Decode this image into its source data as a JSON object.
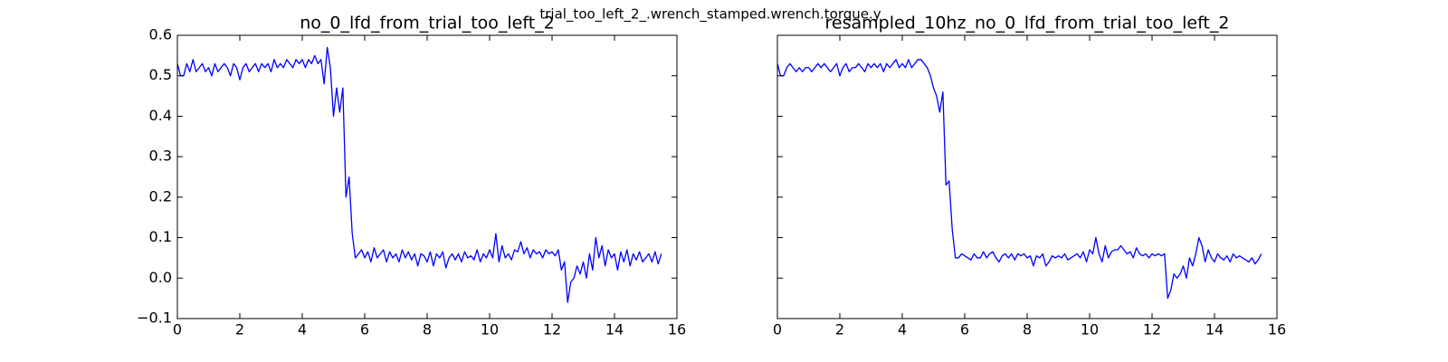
{
  "title": "trial_too_left_2_.wrench_stamped.wrench.torque.y",
  "chart_data": [
    {
      "type": "line",
      "title": "no_0_lfd_from_trial_too_left_2",
      "xlim": [
        0,
        16
      ],
      "xticks": [
        0,
        2,
        4,
        6,
        8,
        10,
        12,
        14,
        16
      ],
      "ylim": [
        -0.1,
        0.6
      ],
      "yticks": [
        {
          "value": -0.1,
          "label": "−0.1"
        },
        {
          "value": 0,
          "label": "0.0"
        },
        0.1,
        0.2,
        0.3,
        0.4,
        0.5,
        0.6
      ],
      "show_ytick_labels": true,
      "x": [
        0,
        0.1,
        0.2,
        0.3,
        0.4,
        0.5,
        0.6,
        0.7,
        0.8,
        0.9,
        1,
        1.1,
        1.2,
        1.3,
        1.4,
        1.5,
        1.6,
        1.7,
        1.8,
        1.9,
        2,
        2.1,
        2.2,
        2.3,
        2.4,
        2.5,
        2.6,
        2.7,
        2.8,
        2.9,
        3,
        3.1,
        3.2,
        3.3,
        3.4,
        3.5,
        3.6,
        3.7,
        3.8,
        3.9,
        4,
        4.1,
        4.2,
        4.3,
        4.4,
        4.5,
        4.6,
        4.7,
        4.8,
        4.9,
        5,
        5.1,
        5.2,
        5.3,
        5.4,
        5.5,
        5.6,
        5.7,
        5.8,
        5.9,
        6,
        6.1,
        6.2,
        6.3,
        6.4,
        6.5,
        6.6,
        6.7,
        6.8,
        6.9,
        7,
        7.1,
        7.2,
        7.3,
        7.4,
        7.5,
        7.6,
        7.7,
        7.8,
        7.9,
        8,
        8.1,
        8.2,
        8.3,
        8.4,
        8.5,
        8.6,
        8.7,
        8.8,
        8.9,
        9,
        9.1,
        9.2,
        9.3,
        9.4,
        9.5,
        9.6,
        9.7,
        9.8,
        9.9,
        10,
        10.1,
        10.2,
        10.3,
        10.4,
        10.5,
        10.6,
        10.7,
        10.8,
        10.9,
        11,
        11.1,
        11.2,
        11.3,
        11.4,
        11.5,
        11.6,
        11.7,
        11.8,
        11.9,
        12,
        12.1,
        12.2,
        12.3,
        12.4,
        12.5,
        12.6,
        12.7,
        12.8,
        12.9,
        13,
        13.1,
        13.2,
        13.3,
        13.4,
        13.5,
        13.6,
        13.7,
        13.8,
        13.9,
        14,
        14.1,
        14.2,
        14.3,
        14.4,
        14.5,
        14.6,
        14.7,
        14.8,
        14.9,
        15,
        15.1,
        15.2,
        15.3,
        15.4,
        15.5
      ],
      "series": [
        {
          "color": "#0000ff",
          "values": [
            0.53,
            0.5,
            0.5,
            0.53,
            0.51,
            0.54,
            0.51,
            0.52,
            0.53,
            0.51,
            0.52,
            0.5,
            0.53,
            0.51,
            0.52,
            0.53,
            0.52,
            0.5,
            0.53,
            0.52,
            0.49,
            0.52,
            0.53,
            0.51,
            0.52,
            0.53,
            0.51,
            0.53,
            0.52,
            0.53,
            0.51,
            0.54,
            0.52,
            0.53,
            0.52,
            0.54,
            0.53,
            0.52,
            0.54,
            0.53,
            0.54,
            0.52,
            0.54,
            0.53,
            0.55,
            0.53,
            0.54,
            0.48,
            0.57,
            0.52,
            0.4,
            0.47,
            0.41,
            0.47,
            0.2,
            0.25,
            0.11,
            0.05,
            0.06,
            0.07,
            0.05,
            0.065,
            0.04,
            0.075,
            0.05,
            0.06,
            0.07,
            0.04,
            0.065,
            0.05,
            0.06,
            0.04,
            0.07,
            0.05,
            0.065,
            0.045,
            0.06,
            0.03,
            0.06,
            0.055,
            0.04,
            0.065,
            0.03,
            0.06,
            0.05,
            0.065,
            0.025,
            0.05,
            0.06,
            0.045,
            0.06,
            0.04,
            0.065,
            0.05,
            0.055,
            0.045,
            0.07,
            0.04,
            0.06,
            0.05,
            0.07,
            0.05,
            0.11,
            0.04,
            0.08,
            0.05,
            0.06,
            0.045,
            0.07,
            0.065,
            0.09,
            0.06,
            0.075,
            0.05,
            0.07,
            0.06,
            0.065,
            0.05,
            0.07,
            0.06,
            0.065,
            0.055,
            0.07,
            0.02,
            0.04,
            -0.06,
            -0.01,
            0.0,
            0.03,
            0.01,
            0.04,
            0.0,
            0.06,
            0.02,
            0.1,
            0.05,
            0.08,
            0.03,
            0.07,
            0.05,
            0.06,
            0.02,
            0.065,
            0.04,
            0.07,
            0.03,
            0.06,
            0.045,
            0.065,
            0.04,
            0.05,
            0.06,
            0.04,
            0.065,
            0.035,
            0.06
          ]
        }
      ]
    },
    {
      "type": "line",
      "title": "resampled_10hz_no_0_lfd_from_trial_too_left_2",
      "xlim": [
        0,
        16
      ],
      "xticks": [
        0,
        2,
        4,
        6,
        8,
        10,
        12,
        14,
        16
      ],
      "ylim": [
        -0.1,
        0.6
      ],
      "yticks": [
        -0.1,
        0,
        0.1,
        0.2,
        0.3,
        0.4,
        0.5,
        0.6
      ],
      "show_ytick_labels": false,
      "x": [
        0,
        0.1,
        0.2,
        0.3,
        0.4,
        0.5,
        0.6,
        0.7,
        0.8,
        0.9,
        1,
        1.1,
        1.2,
        1.3,
        1.4,
        1.5,
        1.6,
        1.7,
        1.8,
        1.9,
        2,
        2.1,
        2.2,
        2.3,
        2.4,
        2.5,
        2.6,
        2.7,
        2.8,
        2.9,
        3,
        3.1,
        3.2,
        3.3,
        3.4,
        3.5,
        3.6,
        3.7,
        3.8,
        3.9,
        4,
        4.1,
        4.2,
        4.3,
        4.4,
        4.5,
        4.6,
        4.7,
        4.8,
        4.9,
        5,
        5.1,
        5.2,
        5.3,
        5.4,
        5.5,
        5.6,
        5.7,
        5.8,
        5.9,
        6,
        6.1,
        6.2,
        6.3,
        6.4,
        6.5,
        6.6,
        6.7,
        6.8,
        6.9,
        7,
        7.1,
        7.2,
        7.3,
        7.4,
        7.5,
        7.6,
        7.7,
        7.8,
        7.9,
        8,
        8.1,
        8.2,
        8.3,
        8.4,
        8.5,
        8.6,
        8.7,
        8.8,
        8.9,
        9,
        9.1,
        9.2,
        9.3,
        9.4,
        9.5,
        9.6,
        9.7,
        9.8,
        9.9,
        10,
        10.1,
        10.2,
        10.3,
        10.4,
        10.5,
        10.6,
        10.7,
        10.8,
        10.9,
        11,
        11.1,
        11.2,
        11.3,
        11.4,
        11.5,
        11.6,
        11.7,
        11.8,
        11.9,
        12,
        12.1,
        12.2,
        12.3,
        12.4,
        12.5,
        12.6,
        12.7,
        12.8,
        12.9,
        13,
        13.1,
        13.2,
        13.3,
        13.4,
        13.5,
        13.6,
        13.7,
        13.8,
        13.9,
        14,
        14.1,
        14.2,
        14.3,
        14.4,
        14.5,
        14.6,
        14.7,
        14.8,
        14.9,
        15,
        15.1,
        15.2,
        15.3,
        15.4,
        15.5
      ],
      "series": [
        {
          "color": "#0000ff",
          "values": [
            0.53,
            0.5,
            0.5,
            0.52,
            0.53,
            0.52,
            0.51,
            0.52,
            0.51,
            0.52,
            0.52,
            0.51,
            0.52,
            0.53,
            0.52,
            0.53,
            0.52,
            0.51,
            0.52,
            0.53,
            0.5,
            0.52,
            0.53,
            0.51,
            0.52,
            0.52,
            0.53,
            0.52,
            0.51,
            0.53,
            0.52,
            0.53,
            0.52,
            0.53,
            0.51,
            0.53,
            0.52,
            0.53,
            0.54,
            0.52,
            0.53,
            0.52,
            0.54,
            0.52,
            0.53,
            0.54,
            0.54,
            0.53,
            0.52,
            0.5,
            0.47,
            0.45,
            0.41,
            0.46,
            0.23,
            0.24,
            0.12,
            0.05,
            0.05,
            0.06,
            0.055,
            0.05,
            0.045,
            0.06,
            0.05,
            0.05,
            0.065,
            0.05,
            0.06,
            0.065,
            0.05,
            0.04,
            0.055,
            0.06,
            0.05,
            0.06,
            0.045,
            0.06,
            0.055,
            0.06,
            0.05,
            0.055,
            0.03,
            0.055,
            0.05,
            0.06,
            0.03,
            0.04,
            0.055,
            0.05,
            0.055,
            0.05,
            0.06,
            0.045,
            0.05,
            0.055,
            0.06,
            0.05,
            0.065,
            0.04,
            0.07,
            0.06,
            0.1,
            0.06,
            0.04,
            0.08,
            0.05,
            0.065,
            0.07,
            0.07,
            0.08,
            0.07,
            0.06,
            0.065,
            0.05,
            0.075,
            0.06,
            0.055,
            0.06,
            0.05,
            0.06,
            0.055,
            0.06,
            0.055,
            0.06,
            -0.05,
            -0.03,
            0.01,
            0.0,
            0.01,
            0.03,
            0.0,
            0.05,
            0.03,
            0.06,
            0.1,
            0.08,
            0.04,
            0.07,
            0.05,
            0.04,
            0.06,
            0.05,
            0.045,
            0.055,
            0.04,
            0.06,
            0.05,
            0.055,
            0.05,
            0.045,
            0.04,
            0.05,
            0.035,
            0.045,
            0.06
          ]
        }
      ]
    }
  ]
}
